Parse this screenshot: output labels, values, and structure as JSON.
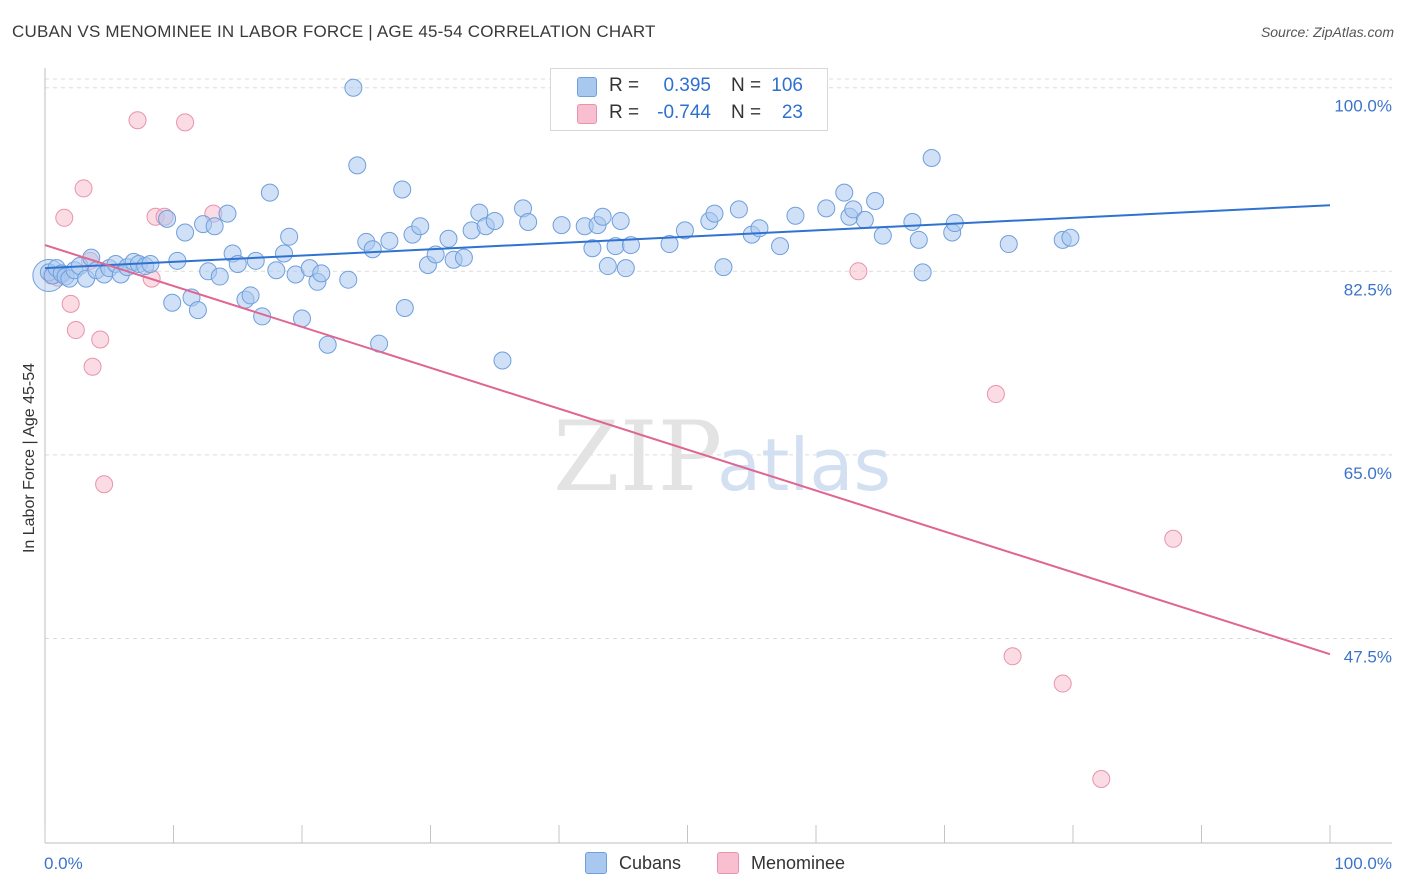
{
  "header": {
    "title": "CUBAN VS MENOMINEE IN LABOR FORCE | AGE 45-54 CORRELATION CHART",
    "source": "Source: ZipAtlas.com"
  },
  "watermark": {
    "zip": "ZIP",
    "atlas": "atlas"
  },
  "legend_top": {
    "rows": [
      {
        "r_label": "R =",
        "r_value": "0.395",
        "n_label": "N =",
        "n_value": "106"
      },
      {
        "r_label": "R =",
        "r_value": "-0.744",
        "n_label": "N =",
        "n_value": "23"
      }
    ]
  },
  "legend_bottom": {
    "items": [
      {
        "label": "Cubans"
      },
      {
        "label": "Menominee"
      }
    ]
  },
  "colors": {
    "blue_fill": "#a9c8f0",
    "blue_stroke": "#6f9fdc",
    "blue_line": "#2f72d0",
    "pink_fill": "#f7bfcf",
    "pink_stroke": "#e893ad",
    "pink_line": "#e06592",
    "axis_text": "#3c74c9",
    "grid": "#dcdcdc"
  },
  "chart_data": {
    "type": "scatter",
    "title": "CUBAN VS MENOMINEE IN LABOR FORCE | AGE 45-54 CORRELATION CHART",
    "xlabel": "",
    "ylabel": "In Labor Force | Age 45-54",
    "xlim": [
      0,
      100
    ],
    "ylim": [
      28,
      101.5
    ],
    "x_tick_labels": [
      "0.0%",
      "100.0%"
    ],
    "y_ticks": [
      47.5,
      65.0,
      82.5,
      100.0
    ],
    "y_tick_labels": [
      "47.5%",
      "65.0%",
      "82.5%",
      "100.0%"
    ],
    "grid": true,
    "legend_position": "top-center",
    "series": [
      {
        "name": "Cubans",
        "r": 0.395,
        "n": 106,
        "trend": {
          "x": [
            0,
            100
          ],
          "y": [
            82.8,
            88.8
          ]
        },
        "points": [
          [
            0.3,
            82.4
          ],
          [
            0.6,
            82.1
          ],
          [
            0.9,
            82.8
          ],
          [
            1.3,
            82.3
          ],
          [
            1.6,
            82.0
          ],
          [
            1.9,
            81.8
          ],
          [
            2.3,
            82.6
          ],
          [
            2.7,
            83.0
          ],
          [
            3.2,
            81.8
          ],
          [
            3.6,
            83.8
          ],
          [
            4.0,
            82.6
          ],
          [
            4.6,
            82.2
          ],
          [
            5.0,
            82.8
          ],
          [
            5.5,
            83.2
          ],
          [
            5.9,
            82.2
          ],
          [
            6.4,
            82.9
          ],
          [
            6.9,
            83.4
          ],
          [
            7.3,
            83.2
          ],
          [
            7.8,
            83.0
          ],
          [
            8.2,
            83.2
          ],
          [
            9.5,
            87.5
          ],
          [
            9.9,
            79.5
          ],
          [
            10.3,
            83.5
          ],
          [
            10.9,
            86.2
          ],
          [
            11.4,
            80.0
          ],
          [
            11.9,
            78.8
          ],
          [
            12.3,
            87.0
          ],
          [
            12.7,
            82.5
          ],
          [
            13.2,
            86.8
          ],
          [
            13.6,
            82.0
          ],
          [
            14.2,
            88.0
          ],
          [
            14.6,
            84.2
          ],
          [
            15.0,
            83.2
          ],
          [
            15.6,
            79.8
          ],
          [
            16.0,
            80.2
          ],
          [
            16.4,
            83.5
          ],
          [
            16.9,
            78.2
          ],
          [
            17.5,
            90.0
          ],
          [
            18.0,
            82.6
          ],
          [
            18.6,
            84.2
          ],
          [
            19.0,
            85.8
          ],
          [
            19.5,
            82.2
          ],
          [
            20.0,
            78.0
          ],
          [
            20.6,
            82.8
          ],
          [
            21.2,
            81.5
          ],
          [
            21.5,
            82.3
          ],
          [
            22.0,
            75.5
          ],
          [
            23.6,
            81.7
          ],
          [
            24.0,
            100.0
          ],
          [
            24.3,
            92.6
          ],
          [
            25.0,
            85.3
          ],
          [
            25.5,
            84.6
          ],
          [
            26.0,
            75.6
          ],
          [
            26.8,
            85.4
          ],
          [
            27.8,
            90.3
          ],
          [
            28.0,
            79.0
          ],
          [
            28.6,
            86.0
          ],
          [
            29.2,
            86.8
          ],
          [
            29.8,
            83.1
          ],
          [
            30.4,
            84.1
          ],
          [
            31.4,
            85.6
          ],
          [
            31.8,
            83.6
          ],
          [
            32.6,
            83.8
          ],
          [
            33.2,
            86.4
          ],
          [
            33.8,
            88.1
          ],
          [
            34.3,
            86.8
          ],
          [
            35.0,
            87.3
          ],
          [
            35.6,
            74.0
          ],
          [
            37.2,
            88.5
          ],
          [
            37.6,
            87.2
          ],
          [
            40.2,
            86.9
          ],
          [
            42.0,
            86.8
          ],
          [
            42.6,
            84.7
          ],
          [
            43.0,
            86.9
          ],
          [
            43.4,
            87.7
          ],
          [
            43.8,
            83.0
          ],
          [
            44.4,
            84.9
          ],
          [
            44.8,
            87.3
          ],
          [
            45.2,
            82.8
          ],
          [
            45.6,
            85.0
          ],
          [
            48.6,
            85.1
          ],
          [
            49.8,
            86.4
          ],
          [
            51.7,
            87.3
          ],
          [
            52.1,
            88.0
          ],
          [
            52.8,
            82.9
          ],
          [
            54.0,
            88.4
          ],
          [
            55.0,
            86.0
          ],
          [
            55.6,
            86.6
          ],
          [
            57.2,
            84.9
          ],
          [
            58.4,
            87.8
          ],
          [
            60.8,
            88.5
          ],
          [
            62.2,
            90.0
          ],
          [
            62.6,
            87.7
          ],
          [
            62.9,
            88.4
          ],
          [
            63.8,
            87.4
          ],
          [
            64.6,
            89.2
          ],
          [
            65.2,
            85.9
          ],
          [
            67.5,
            87.2
          ],
          [
            68.0,
            85.5
          ],
          [
            68.3,
            82.4
          ],
          [
            69.0,
            93.3
          ],
          [
            70.6,
            86.2
          ],
          [
            70.8,
            87.1
          ],
          [
            75.0,
            85.1
          ],
          [
            79.2,
            85.5
          ],
          [
            79.8,
            85.7
          ]
        ]
      },
      {
        "name": "Menominee",
        "r": -0.744,
        "n": 23,
        "trend": {
          "x": [
            0,
            100
          ],
          "y": [
            85.0,
            46.0
          ]
        },
        "points": [
          [
            0.5,
            82.1
          ],
          [
            1.3,
            82.2
          ],
          [
            1.5,
            87.6
          ],
          [
            2.0,
            79.4
          ],
          [
            2.4,
            76.9
          ],
          [
            3.0,
            90.4
          ],
          [
            3.5,
            83.5
          ],
          [
            3.7,
            73.4
          ],
          [
            4.3,
            76.0
          ],
          [
            4.6,
            62.2
          ],
          [
            7.2,
            96.9
          ],
          [
            8.3,
            81.8
          ],
          [
            8.6,
            87.7
          ],
          [
            9.3,
            87.7
          ],
          [
            10.9,
            96.7
          ],
          [
            13.1,
            88.0
          ],
          [
            63.3,
            82.5
          ],
          [
            74.0,
            70.8
          ],
          [
            75.3,
            45.8
          ],
          [
            79.2,
            43.2
          ],
          [
            82.2,
            34.1
          ],
          [
            87.8,
            57.0
          ],
          [
            1.0,
            81.9
          ]
        ]
      }
    ]
  }
}
